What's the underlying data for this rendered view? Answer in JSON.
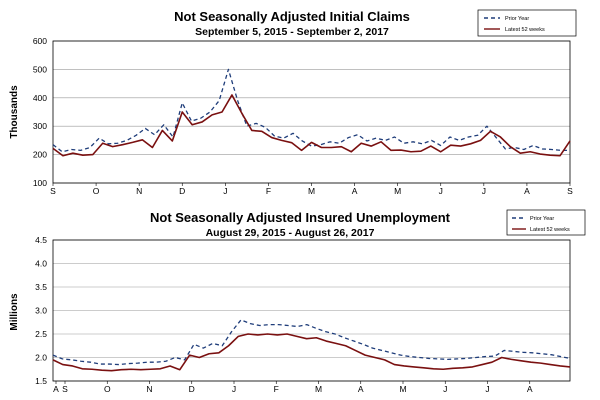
{
  "chart_data": [
    {
      "type": "line",
      "title": "Not Seasonally Adjusted Initial Claims",
      "subtitle": "September 5, 2015 -  September 2, 2017",
      "ylabel": "Thousands",
      "ylim": [
        100,
        600
      ],
      "yticks": [
        "100",
        "200",
        "300",
        "400",
        "500",
        "600"
      ],
      "xticks": [
        "S",
        "O",
        "N",
        "D",
        "J",
        "F",
        "M",
        "A",
        "M",
        "J",
        "J",
        "A",
        "S"
      ],
      "grid": true,
      "legend_position": "top-right",
      "series": [
        {
          "name": "Prior Year",
          "style": "dashed",
          "color": "#1f3d7a",
          "values": [
            235,
            210,
            218,
            215,
            225,
            258,
            238,
            240,
            250,
            268,
            292,
            270,
            305,
            262,
            382,
            318,
            328,
            350,
            390,
            500,
            390,
            300,
            310,
            296,
            265,
            258,
            275,
            248,
            230,
            235,
            245,
            240,
            260,
            270,
            248,
            258,
            250,
            262,
            240,
            245,
            238,
            250,
            232,
            262,
            250,
            262,
            268,
            300,
            260,
            220,
            225,
            218,
            232,
            220,
            218,
            215,
            215
          ]
        },
        {
          "name": "Latest 52 weeks",
          "style": "solid",
          "color": "#7a1010",
          "values": [
            222,
            196,
            205,
            198,
            200,
            240,
            228,
            235,
            243,
            252,
            225,
            285,
            248,
            350,
            305,
            315,
            340,
            350,
            410,
            345,
            285,
            282,
            260,
            250,
            242,
            215,
            243,
            225,
            225,
            228,
            210,
            240,
            230,
            245,
            215,
            216,
            210,
            212,
            230,
            210,
            233,
            230,
            238,
            250,
            282,
            262,
            228,
            205,
            210,
            202,
            198,
            196,
            248
          ]
        }
      ]
    },
    {
      "type": "line",
      "title": "Not Seasonally Adjusted Insured Unemployment",
      "subtitle": "August 29, 2015 -  August 26, 2017",
      "ylabel": "Millions",
      "ylim": [
        1.5,
        4.5
      ],
      "yticks": [
        "1.5",
        "2.0",
        "2.5",
        "3.0",
        "3.5",
        "4.0",
        "4.5"
      ],
      "xticks": [
        "A",
        "S",
        "O",
        "N",
        "D",
        "J",
        "F",
        "M",
        "A",
        "M",
        "J",
        "J",
        "A"
      ],
      "grid": true,
      "legend_position": "top-right",
      "series": [
        {
          "name": "Prior Year",
          "style": "dashed",
          "color": "#1f3d7a",
          "values": [
            2.05,
            1.97,
            1.95,
            1.92,
            1.9,
            1.86,
            1.86,
            1.85,
            1.87,
            1.88,
            1.9,
            1.9,
            1.92,
            2.0,
            1.95,
            2.28,
            2.2,
            2.3,
            2.25,
            2.55,
            2.8,
            2.72,
            2.68,
            2.7,
            2.7,
            2.68,
            2.66,
            2.7,
            2.62,
            2.55,
            2.5,
            2.42,
            2.35,
            2.28,
            2.2,
            2.15,
            2.1,
            2.05,
            2.02,
            2.0,
            1.98,
            1.97,
            1.96,
            1.97,
            1.98,
            2.0,
            2.02,
            2.03,
            2.15,
            2.13,
            2.11,
            2.1,
            2.08,
            2.06,
            2.02,
            1.98
          ]
        },
        {
          "name": "Latest 52 weeks",
          "style": "solid",
          "color": "#7a1010",
          "values": [
            1.95,
            1.85,
            1.82,
            1.76,
            1.75,
            1.73,
            1.72,
            1.74,
            1.75,
            1.74,
            1.75,
            1.76,
            1.82,
            1.74,
            2.05,
            2.0,
            2.08,
            2.1,
            2.25,
            2.45,
            2.5,
            2.48,
            2.5,
            2.48,
            2.5,
            2.45,
            2.4,
            2.42,
            2.35,
            2.3,
            2.25,
            2.15,
            2.05,
            2.0,
            1.95,
            1.85,
            1.82,
            1.8,
            1.78,
            1.76,
            1.75,
            1.77,
            1.78,
            1.8,
            1.85,
            1.9,
            2.0,
            1.96,
            1.93,
            1.9,
            1.88,
            1.85,
            1.82,
            1.8
          ]
        }
      ]
    }
  ]
}
